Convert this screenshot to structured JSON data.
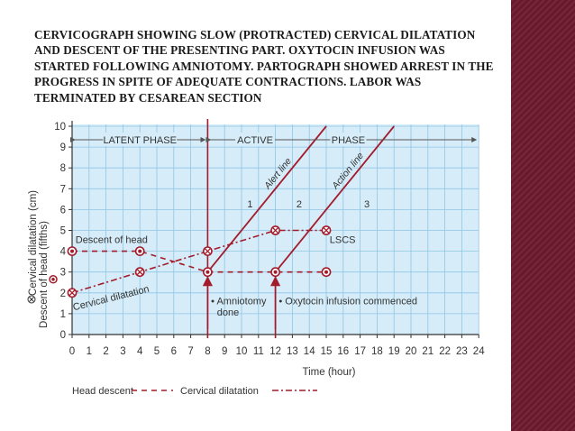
{
  "slide": {
    "title": "CERVICOGRAPH SHOWING SLOW (PROTRACTED) CERVICAL DILATATION AND DESCENT OF THE PRESENTING PART. OXYTOCIN INFUSION WAS STARTED FOLLOWING AMNIOTOMY. PARTOGRAPH SHOWED ARREST IN THE PROGRESS IN SPITE OF ADEQUATE CONTRACTIONS. LABOR WAS TERMINATED BY CESAREAN SECTION",
    "accent_color": "#6f1c2f"
  },
  "chart_data": {
    "type": "line",
    "xlabel": "Time (hour)",
    "ylabel_outer": "Descent of head (fifths)",
    "ylabel_inner": "Cervical dilatation (cm)",
    "x_ticks": [
      0,
      1,
      2,
      3,
      4,
      5,
      6,
      7,
      8,
      9,
      10,
      11,
      12,
      13,
      14,
      15,
      16,
      17,
      18,
      19,
      20,
      21,
      22,
      23,
      24
    ],
    "y_ticks": [
      0,
      1,
      2,
      3,
      4,
      5,
      6,
      7,
      8,
      9,
      10
    ],
    "xlim": [
      0,
      24
    ],
    "ylim": [
      0,
      10
    ],
    "grid": true,
    "background_color": "#d6ecf8",
    "grid_color": "#8fc6e6",
    "line_color": "#a31c2c",
    "series": [
      {
        "name": "Head descent",
        "style": "dashed",
        "points": [
          {
            "x": 0,
            "y": 4
          },
          {
            "x": 4,
            "y": 4
          },
          {
            "x": 8,
            "y": 3
          },
          {
            "x": 12,
            "y": 3
          },
          {
            "x": 15,
            "y": 3
          }
        ],
        "marker": "filled-circle"
      },
      {
        "name": "Cervical dilatation",
        "style": "dash-dot",
        "points": [
          {
            "x": 0,
            "y": 2
          },
          {
            "x": 4,
            "y": 3
          },
          {
            "x": 8,
            "y": 4
          },
          {
            "x": 12,
            "y": 5
          },
          {
            "x": 15,
            "y": 5
          }
        ],
        "marker": "circle-x"
      }
    ],
    "reference_lines": [
      {
        "name": "Alert line",
        "from": {
          "x": 8,
          "y": 3
        },
        "to": {
          "x": 15,
          "y": 10
        }
      },
      {
        "name": "Action line",
        "from": {
          "x": 12,
          "y": 3
        },
        "to": {
          "x": 19,
          "y": 10
        }
      }
    ],
    "vertical_lines": [
      8,
      12
    ],
    "phase_labels": {
      "latent": "LATENT PHASE",
      "active": "ACTIVE",
      "phase": "PHASE"
    },
    "zones": [
      "1",
      "2",
      "3"
    ],
    "annotations": {
      "descent_of_head": "Descent of head",
      "cervical_dilatation": "Cervical dilatation",
      "lscs": "LSCS",
      "amniotomy_line1": "• Amniotomy",
      "amniotomy_line2": "done",
      "oxytocin": "• Oxytocin infusion commenced"
    },
    "legend": [
      {
        "label": "Head descent",
        "style": "dashed"
      },
      {
        "label": "Cervical dilatation",
        "style": "dash-dot"
      }
    ],
    "legend_position": "bottom-left"
  }
}
